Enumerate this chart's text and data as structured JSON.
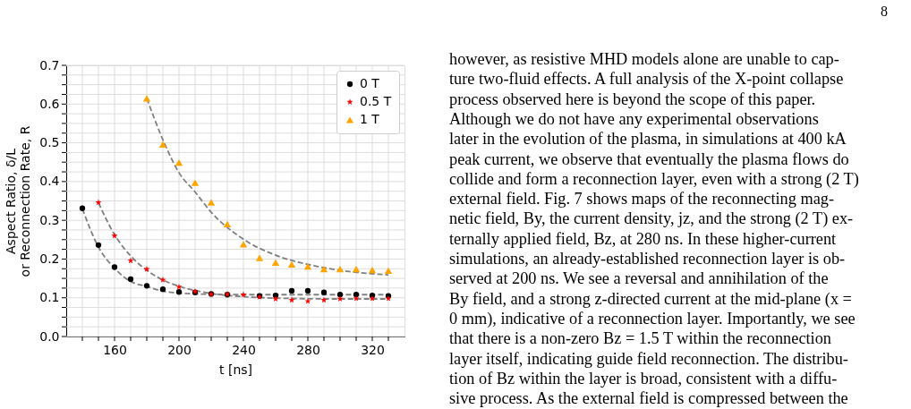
{
  "chart_data": {
    "type": "scatter",
    "xlabel": "t [ns]",
    "ylabel": "Aspect Ratio, δ/L\nor Reconnection Rate, R",
    "xlim": [
      130,
      340
    ],
    "xticks": [
      {
        "value": 140,
        "label": null
      },
      {
        "value": 150,
        "label": null
      },
      160,
      {
        "value": 170,
        "label": null
      },
      {
        "value": 180,
        "label": null
      },
      {
        "value": 190,
        "label": null
      },
      200,
      {
        "value": 210,
        "label": null
      },
      {
        "value": 220,
        "label": null
      },
      {
        "value": 230,
        "label": null
      },
      240,
      {
        "value": 250,
        "label": null
      },
      {
        "value": 260,
        "label": null
      },
      {
        "value": 270,
        "label": null
      },
      280,
      {
        "value": 290,
        "label": null
      },
      {
        "value": 300,
        "label": null
      },
      {
        "value": 310,
        "label": null
      },
      320,
      {
        "value": 330,
        "label": null
      }
    ],
    "ylim": [
      0,
      0.7
    ],
    "yticks": [
      {
        "value": 0,
        "label": "0.0"
      },
      {
        "value": 0.025,
        "label": null
      },
      {
        "value": 0.05,
        "label": null
      },
      {
        "value": 0.075,
        "label": null
      },
      0.1,
      {
        "value": 0.125,
        "label": null
      },
      {
        "value": 0.15,
        "label": null
      },
      {
        "value": 0.175,
        "label": null
      },
      0.2,
      {
        "value": 0.225,
        "label": null
      },
      {
        "value": 0.25,
        "label": null
      },
      {
        "value": 0.275,
        "label": null
      },
      0.3,
      {
        "value": 0.325,
        "label": null
      },
      {
        "value": 0.35,
        "label": null
      },
      {
        "value": 0.375,
        "label": null
      },
      0.4,
      {
        "value": 0.425,
        "label": null
      },
      {
        "value": 0.45,
        "label": null
      },
      {
        "value": 0.475,
        "label": null
      },
      0.5,
      {
        "value": 0.525,
        "label": null
      },
      {
        "value": 0.55,
        "label": null
      },
      {
        "value": 0.575,
        "label": null
      },
      0.6,
      {
        "value": 0.625,
        "label": null
      },
      {
        "value": 0.65,
        "label": null
      },
      {
        "value": 0.675,
        "label": null
      },
      0.7
    ],
    "grid": true,
    "legend": "top right",
    "series": [
      {
        "name": "0 T",
        "marker": "circle",
        "color": "#000000",
        "x": [
          140,
          150,
          160,
          170,
          180,
          190,
          200,
          210,
          220,
          230,
          240,
          250,
          260,
          270,
          280,
          290,
          300,
          310,
          320,
          330
        ],
        "values": [
          0.331,
          0.236,
          0.179,
          0.148,
          0.131,
          0.122,
          0.115,
          0.114,
          0.11,
          0.108,
          null,
          0.105,
          0.106,
          0.118,
          0.118,
          0.114,
          0.108,
          0.108,
          0.106,
          0.105
        ]
      },
      {
        "name": "0.5 T",
        "marker": "star",
        "color": "#ff0000",
        "x": [
          150,
          160,
          170,
          180,
          190,
          200,
          210,
          220,
          230,
          240,
          250,
          260,
          270,
          280,
          290,
          300,
          310,
          320,
          330
        ],
        "values": [
          0.346,
          0.26,
          0.196,
          0.174,
          0.146,
          0.128,
          0.116,
          0.109,
          0.109,
          0.108,
          0.102,
          0.097,
          0.094,
          0.091,
          0.094,
          0.097,
          0.098,
          0.098,
          0.098
        ]
      },
      {
        "name": "1 T",
        "marker": "triangle",
        "color": "#ffa500",
        "x": [
          180,
          190,
          200,
          210,
          220,
          230,
          240,
          250,
          260,
          270,
          280,
          290,
          300,
          310,
          320,
          330
        ],
        "values": [
          0.615,
          0.496,
          0.449,
          0.397,
          0.346,
          0.29,
          0.238,
          0.203,
          0.191,
          0.186,
          0.181,
          0.174,
          0.174,
          0.174,
          0.172,
          0.17
        ]
      },
      {
        "type": "line",
        "line_style": "dashed",
        "marker": "none",
        "color": "#808080",
        "x": [
          140,
          150,
          160,
          170,
          180,
          190,
          200,
          220,
          240,
          280,
          330
        ],
        "values": [
          0.33,
          0.231,
          0.176,
          0.142,
          0.129,
          0.117,
          0.112,
          0.109,
          0.108,
          0.108,
          0.108
        ]
      },
      {
        "type": "line",
        "line_style": "dashed",
        "marker": "none",
        "color": "#808080",
        "x": [
          150,
          160,
          170,
          180,
          190,
          200,
          220,
          240,
          260,
          300,
          330
        ],
        "values": [
          0.345,
          0.263,
          0.208,
          0.171,
          0.146,
          0.13,
          0.111,
          0.103,
          0.099,
          0.097,
          0.097
        ]
      },
      {
        "type": "line",
        "line_style": "dashed",
        "marker": "none",
        "color": "#808080",
        "x": [
          180,
          190,
          200,
          210,
          220,
          240,
          260,
          280,
          300,
          330
        ],
        "values": [
          0.615,
          0.508,
          0.423,
          0.373,
          0.321,
          0.251,
          0.21,
          0.186,
          0.171,
          0.159
        ]
      }
    ],
    "annotations": [
      "8",
      "however, as resistive MHD models alone are unable to cap-",
      "ture two-fluid effects. A full analysis of the X-point collapse",
      "process observed here is beyond the scope of this paper.",
      "Although we do not have any experimental observations",
      "later in the evolution of the plasma, in simulations at 400 kA",
      "peak current, we observe that eventually the plasma flows do",
      "collide and form a reconnection layer, even with a strong (2 T)",
      "external field. Fig. 7 shows maps of the reconnecting mag-",
      "netic field, By, the current density, jz, and the strong (2 T) ex-",
      "ternally applied field, Bz, at 280 ns. In these higher-current",
      "simulations, an already-established reconnection layer is ob-",
      "served at 200 ns. We see a reversal and annihilation of the",
      "By field, and a strong z-directed current at the mid-plane (x =",
      "0 mm), indicative of a reconnection layer. Importantly, we see",
      "that there is a non-zero Bz = 1.5 T within the reconnection",
      "layer itself, indicating guide field reconnection. The distribu-",
      "tion of Bz within the layer is broad, consistent with a diffu-",
      "sive process. As the external field is compressed between the"
    ]
  }
}
